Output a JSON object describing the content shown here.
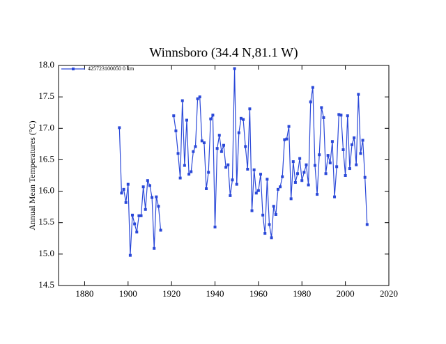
{
  "chart_data": {
    "type": "line",
    "title": "Winnsboro (34.4 N,81.1 W)",
    "y_label": "Annual Mean Temperatures (°C)",
    "x": [
      1896,
      1897,
      1898,
      1899,
      1900,
      1901,
      1902,
      1903,
      1904,
      1905,
      1906,
      1907,
      1908,
      1909,
      1910,
      1911,
      1912,
      1913,
      1914,
      1915,
      1916,
      1917,
      1918,
      1919,
      1920,
      1921,
      1922,
      1923,
      1924,
      1925,
      1926,
      1927,
      1928,
      1929,
      1930,
      1931,
      1932,
      1933,
      1934,
      1935,
      1936,
      1937,
      1938,
      1939,
      1940,
      1941,
      1942,
      1943,
      1944,
      1945,
      1946,
      1947,
      1948,
      1949,
      1950,
      1951,
      1952,
      1953,
      1954,
      1955,
      1956,
      1957,
      1958,
      1959,
      1960,
      1961,
      1962,
      1963,
      1964,
      1965,
      1966,
      1967,
      1968,
      1969,
      1970,
      1971,
      1972,
      1973,
      1974,
      1975,
      1976,
      1977,
      1978,
      1979,
      1980,
      1981,
      1982,
      1983,
      1984,
      1985,
      1986,
      1987,
      1988,
      1989,
      1990,
      1991,
      1992,
      1993,
      1994,
      1995,
      1996,
      1997,
      1998,
      1999,
      2000,
      2001,
      2002,
      2003,
      2004,
      2005,
      2006,
      2007,
      2008,
      2009,
      2010
    ],
    "series": [
      {
        "name": "425723100050  0 km",
        "color": "#2a48d8",
        "values": [
          17.01,
          15.97,
          16.03,
          15.82,
          16.11,
          14.98,
          15.62,
          15.48,
          15.35,
          15.61,
          15.61,
          16.07,
          15.71,
          16.17,
          16.09,
          15.9,
          15.09,
          15.91,
          15.76,
          15.38,
          null,
          null,
          null,
          null,
          null,
          17.2,
          16.96,
          16.6,
          16.21,
          17.44,
          16.41,
          17.13,
          16.27,
          16.31,
          16.63,
          16.71,
          17.47,
          17.5,
          16.8,
          16.77,
          16.04,
          16.3,
          17.15,
          17.21,
          15.43,
          16.68,
          16.89,
          16.63,
          16.73,
          16.38,
          16.42,
          15.93,
          16.18,
          17.95,
          16.11,
          16.93,
          17.16,
          17.14,
          16.71,
          16.35,
          17.31,
          15.69,
          16.34,
          15.97,
          16.01,
          16.27,
          15.62,
          15.33,
          16.19,
          15.47,
          15.26,
          15.76,
          15.63,
          16.03,
          16.07,
          16.23,
          16.82,
          16.83,
          17.03,
          15.88,
          16.47,
          16.14,
          16.28,
          16.52,
          16.17,
          16.3,
          16.42,
          16.1,
          17.42,
          17.65,
          16.41,
          15.95,
          16.58,
          17.33,
          17.17,
          16.28,
          16.57,
          16.45,
          16.79,
          15.91,
          16.39,
          17.22,
          17.21,
          16.66,
          16.25,
          17.2,
          16.36,
          16.74,
          16.85,
          16.42,
          17.54,
          16.6,
          16.81,
          16.22,
          15.47
        ]
      }
    ],
    "xlim": [
      1868,
      2020
    ],
    "xticks": [
      1880,
      1900,
      1920,
      1940,
      1960,
      1980,
      2000,
      2020
    ],
    "ylim": [
      14.5,
      18.0
    ],
    "yticks": [
      14.5,
      {
        "value": 15,
        "label": "15.0"
      },
      15.5,
      {
        "value": 16,
        "label": "16.0"
      },
      16.5,
      {
        "value": 17,
        "label": "17.0"
      },
      17.5,
      {
        "value": 18,
        "label": "18.0"
      }
    ],
    "legend": "upper-left"
  }
}
